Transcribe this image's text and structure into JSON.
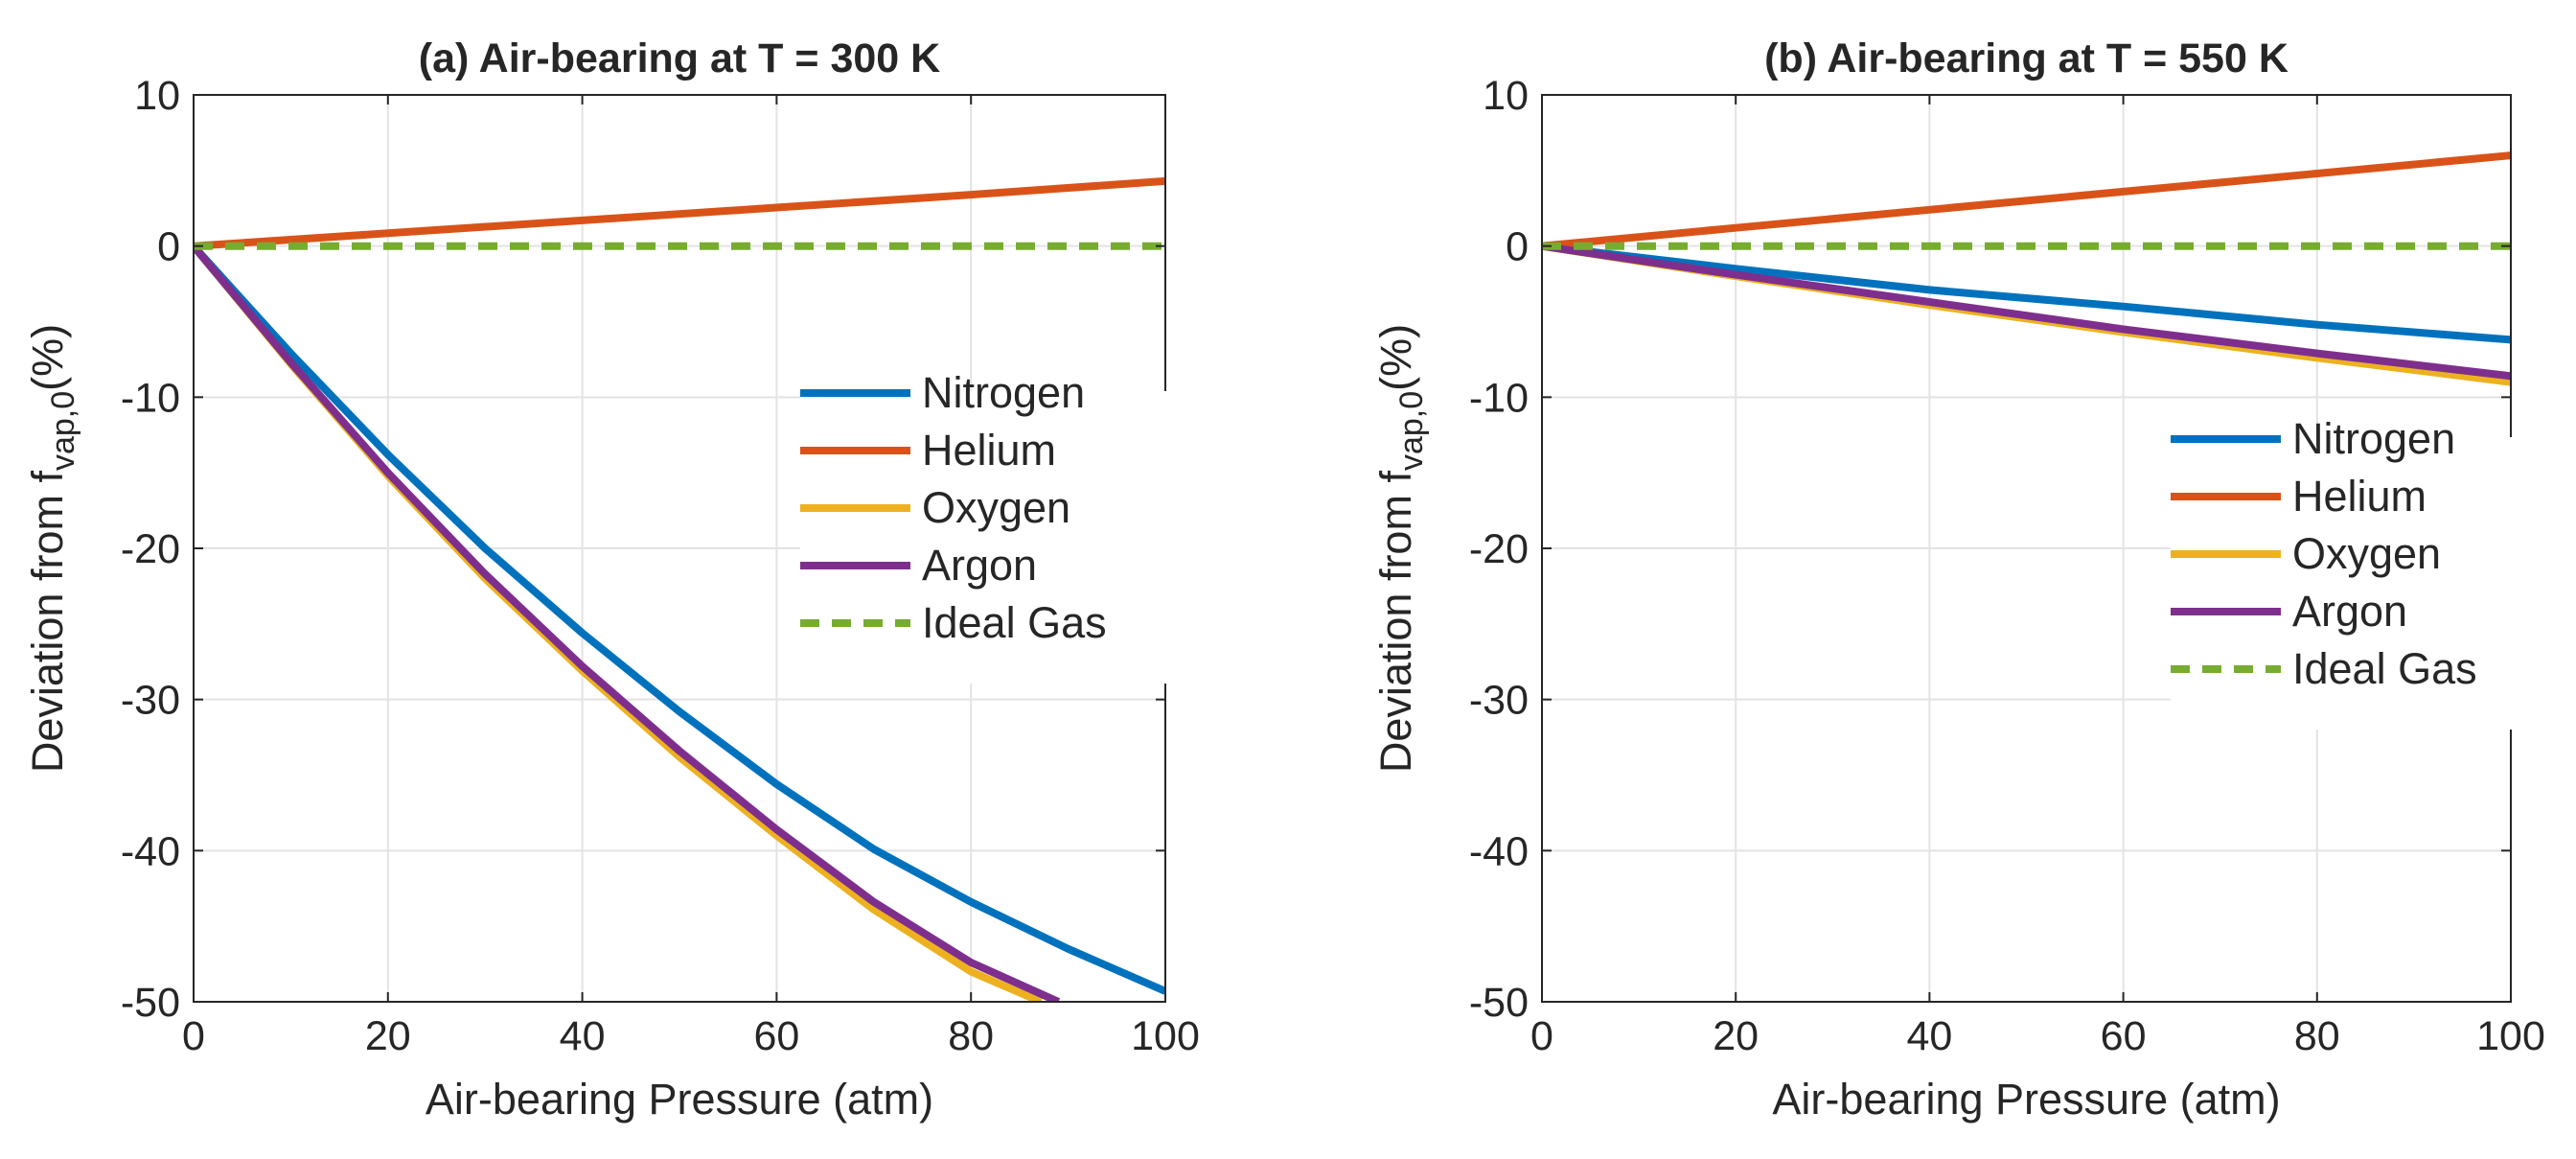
{
  "chart_data": [
    {
      "type": "line",
      "title": "(a) Air-bearing at T = 300 K",
      "xlabel": "Air-bearing Pressure (atm)",
      "ylabel": {
        "main": "Deviation from f",
        "sub": "vap,0",
        "tail": "(%)"
      },
      "xlim": [
        0,
        100
      ],
      "ylim": [
        -50,
        10
      ],
      "xticks": [
        0,
        20,
        40,
        60,
        80,
        100
      ],
      "yticks": [
        10,
        0,
        -10,
        -20,
        -30,
        -40,
        -50
      ],
      "grid": true,
      "legend_position": "middle-right",
      "series": [
        {
          "name": "Nitrogen",
          "color": "#0072BD",
          "dash": "solid",
          "x": [
            0,
            10,
            20,
            30,
            40,
            50,
            60,
            70,
            80,
            90,
            100
          ],
          "y": [
            0,
            -7.1,
            -13.8,
            -20.0,
            -25.6,
            -30.8,
            -35.6,
            -39.9,
            -43.4,
            -46.5,
            -49.3
          ]
        },
        {
          "name": "Helium",
          "color": "#D95319",
          "dash": "solid",
          "x": [
            0,
            20,
            40,
            60,
            80,
            100
          ],
          "y": [
            0,
            0.85,
            1.7,
            2.55,
            3.4,
            4.3
          ]
        },
        {
          "name": "Oxygen",
          "color": "#EDB120",
          "dash": "solid",
          "x": [
            0,
            10,
            20,
            30,
            40,
            50,
            60,
            70,
            80,
            87.2
          ],
          "y": [
            0,
            -7.8,
            -15.2,
            -22.0,
            -28.1,
            -33.8,
            -39.0,
            -43.9,
            -48.0,
            -50.0
          ]
        },
        {
          "name": "Argon",
          "color": "#7E2F8E",
          "dash": "solid",
          "x": [
            0,
            10,
            20,
            30,
            40,
            50,
            60,
            70,
            80,
            89.0
          ],
          "y": [
            0,
            -7.7,
            -15.0,
            -21.7,
            -27.8,
            -33.4,
            -38.6,
            -43.4,
            -47.4,
            -50.0
          ]
        },
        {
          "name": "Ideal Gas",
          "color": "#77AC30",
          "dash": "dashed",
          "x": [
            0,
            100
          ],
          "y": [
            0,
            0
          ]
        }
      ]
    },
    {
      "type": "line",
      "title": "(b) Air-bearing at T = 550 K",
      "xlabel": "Air-bearing Pressure (atm)",
      "ylabel": {
        "main": "Deviation from f",
        "sub": "vap,0",
        "tail": "(%)"
      },
      "xlim": [
        0,
        100
      ],
      "ylim": [
        -50,
        10
      ],
      "xticks": [
        0,
        20,
        40,
        60,
        80,
        100
      ],
      "yticks": [
        10,
        0,
        -10,
        -20,
        -30,
        -40,
        -50
      ],
      "grid": true,
      "legend_position": "middle-right",
      "series": [
        {
          "name": "Nitrogen",
          "color": "#0072BD",
          "dash": "solid",
          "x": [
            0,
            20,
            40,
            60,
            80,
            100
          ],
          "y": [
            0,
            -1.5,
            -2.9,
            -4.0,
            -5.2,
            -6.2
          ]
        },
        {
          "name": "Helium",
          "color": "#D95319",
          "dash": "solid",
          "x": [
            0,
            20,
            40,
            60,
            80,
            100
          ],
          "y": [
            0,
            1.2,
            2.4,
            3.6,
            4.8,
            6.0
          ]
        },
        {
          "name": "Oxygen",
          "color": "#EDB120",
          "dash": "solid",
          "x": [
            0,
            20,
            40,
            60,
            80,
            100
          ],
          "y": [
            0,
            -2.0,
            -3.9,
            -5.7,
            -7.4,
            -9.0
          ]
        },
        {
          "name": "Argon",
          "color": "#7E2F8E",
          "dash": "solid",
          "x": [
            0,
            20,
            40,
            60,
            80,
            100
          ],
          "y": [
            0,
            -1.9,
            -3.7,
            -5.5,
            -7.1,
            -8.6
          ]
        },
        {
          "name": "Ideal Gas",
          "color": "#77AC30",
          "dash": "dashed",
          "x": [
            0,
            100
          ],
          "y": [
            0,
            0
          ]
        }
      ]
    }
  ]
}
